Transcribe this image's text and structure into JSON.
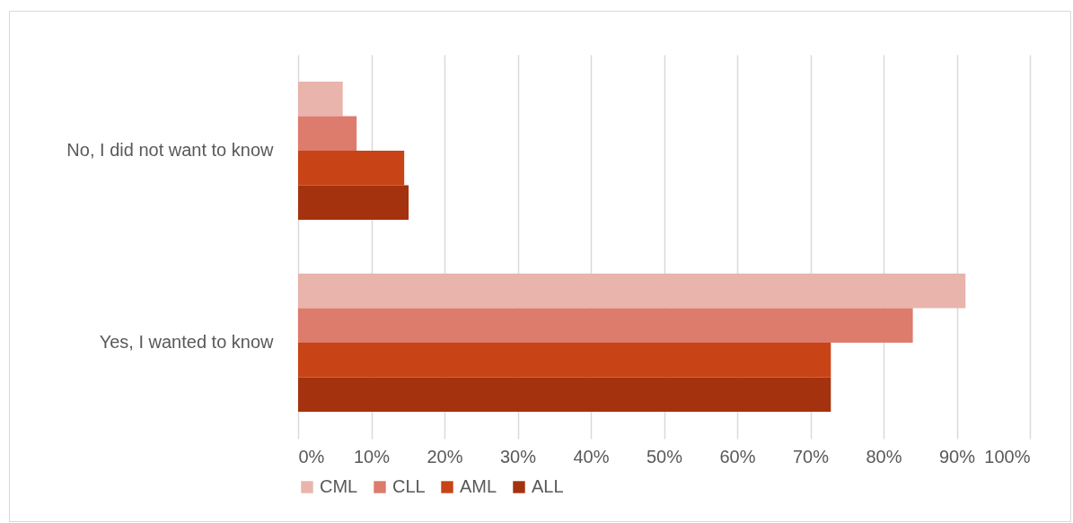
{
  "chart_data": {
    "type": "bar",
    "orientation": "horizontal",
    "categories": [
      "No, I did not want to know",
      "Yes, I wanted to know"
    ],
    "series": [
      {
        "name": "CML",
        "color": "#e8b4ac",
        "values": [
          6.1,
          91.2
        ]
      },
      {
        "name": "CLL",
        "color": "#dd7b6c",
        "values": [
          8.0,
          84.0
        ]
      },
      {
        "name": "AML",
        "color": "#c84315",
        "values": [
          14.5,
          72.8
        ]
      },
      {
        "name": "ALL",
        "color": "#a5320f",
        "values": [
          15.1,
          72.8
        ]
      }
    ],
    "xlim": [
      0,
      100
    ],
    "xticks": [
      {
        "value": 0,
        "label": "0%"
      },
      {
        "value": 10,
        "label": "10%"
      },
      {
        "value": 20,
        "label": "20%"
      },
      {
        "value": 30,
        "label": "30%"
      },
      {
        "value": 40,
        "label": "40%"
      },
      {
        "value": 50,
        "label": "50%"
      },
      {
        "value": 60,
        "label": "60%"
      },
      {
        "value": 70,
        "label": "70%"
      },
      {
        "value": 80,
        "label": "80%"
      },
      {
        "value": 90,
        "label": "90%"
      },
      {
        "value": 100,
        "label": "100%"
      }
    ],
    "grid": "x",
    "legend": "bottom"
  }
}
